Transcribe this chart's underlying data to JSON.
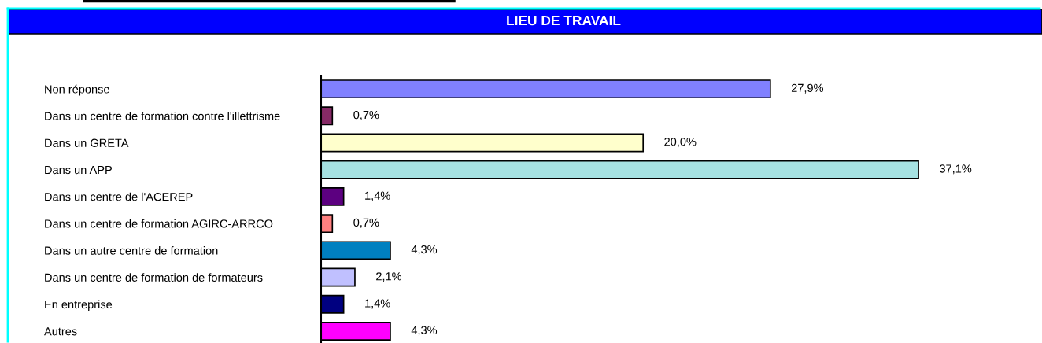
{
  "chart_data": {
    "type": "bar",
    "orientation": "horizontal",
    "title": "LIEU DE TRAVAIL",
    "categories": [
      "Non réponse",
      "Dans un centre de formation contre l'illettrisme",
      "Dans un GRETA",
      "Dans un APP",
      "Dans un centre de l'ACEREP",
      "Dans un centre de formation AGIRC-ARRCO",
      "Dans un autre centre de formation",
      "Dans un centre de formation de formateurs",
      "En entreprise",
      "Autres"
    ],
    "values": [
      27.9,
      0.7,
      20.0,
      37.1,
      1.4,
      0.7,
      4.3,
      2.1,
      1.4,
      4.3
    ],
    "colors": [
      "#8080ff",
      "#862a66",
      "#ffffcc",
      "#a6e2e2",
      "#5c0080",
      "#ff8080",
      "#0080c0",
      "#c0c0ff",
      "#000080",
      "#ff00ff"
    ],
    "value_labels": [
      "27,9%",
      "0,7%",
      "20,0%",
      "37,1%",
      "1,4%",
      "0,7%",
      "4,3%",
      "2,1%",
      "1,4%",
      "4,3%"
    ],
    "tick_labels": "y"
  }
}
